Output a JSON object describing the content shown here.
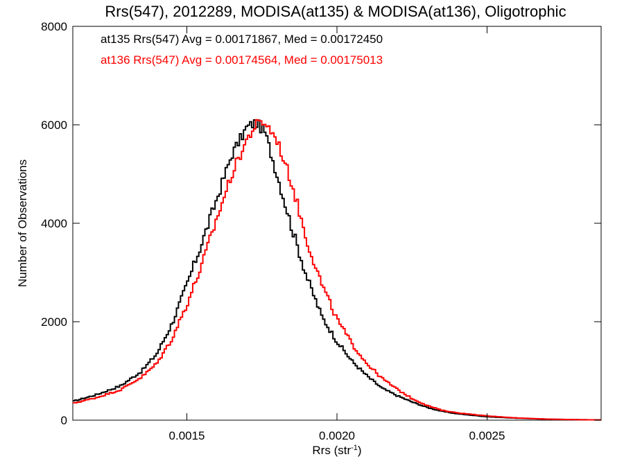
{
  "chart_data": {
    "type": "line",
    "title": "Rrs(547), 2012289, MODISA(at135) & MODISA(at136), Oligotrophic",
    "xlabel": {
      "base": "Rrs (str",
      "sup": "-1",
      "close": ")"
    },
    "ylabel": "Number of Observations",
    "xlim": [
      0.00112,
      0.00288
    ],
    "ylim": [
      0,
      8000
    ],
    "x_ticks": [
      {
        "value": 0.0015,
        "label": "0.0015"
      },
      {
        "value": 0.002,
        "label": "0.0020"
      },
      {
        "value": 0.0025,
        "label": "0.0025"
      }
    ],
    "y_ticks": [
      {
        "value": 0,
        "label": "0"
      },
      {
        "value": 2000,
        "label": "2000"
      },
      {
        "value": 4000,
        "label": "4000"
      },
      {
        "value": 6000,
        "label": "6000"
      },
      {
        "value": 8000,
        "label": "8000"
      }
    ],
    "grid": false,
    "style": "histogram-step",
    "series": [
      {
        "color": "#000000",
        "annotation": "at135 Rrs(547) Avg = 0.00171867, Med = 0.00172450",
        "points": [
          [
            0.00112,
            380
          ],
          [
            0.0012,
            520
          ],
          [
            0.00128,
            700
          ],
          [
            0.00135,
            1000
          ],
          [
            0.0014,
            1350
          ],
          [
            0.00145,
            1950
          ],
          [
            0.0015,
            2750
          ],
          [
            0.00155,
            3600
          ],
          [
            0.0016,
            4500
          ],
          [
            0.00165,
            5400
          ],
          [
            0.0017,
            5950
          ],
          [
            0.00173,
            6050
          ],
          [
            0.00176,
            5850
          ],
          [
            0.0018,
            5000
          ],
          [
            0.00185,
            3900
          ],
          [
            0.0019,
            2900
          ],
          [
            0.00195,
            2100
          ],
          [
            0.002,
            1600
          ],
          [
            0.00205,
            1200
          ],
          [
            0.0021,
            900
          ],
          [
            0.00215,
            650
          ],
          [
            0.0022,
            500
          ],
          [
            0.00225,
            370
          ],
          [
            0.0023,
            260
          ],
          [
            0.00235,
            180
          ],
          [
            0.0024,
            130
          ],
          [
            0.0025,
            70
          ],
          [
            0.0026,
            40
          ],
          [
            0.0027,
            20
          ],
          [
            0.0028,
            10
          ],
          [
            0.00288,
            5
          ]
        ]
      },
      {
        "color": "#ff0000",
        "annotation": "at136 Rrs(547) Avg = 0.00174564, Med = 0.00175013",
        "points": [
          [
            0.00112,
            340
          ],
          [
            0.0012,
            460
          ],
          [
            0.00128,
            620
          ],
          [
            0.00135,
            880
          ],
          [
            0.0014,
            1150
          ],
          [
            0.00145,
            1650
          ],
          [
            0.0015,
            2350
          ],
          [
            0.00155,
            3150
          ],
          [
            0.0016,
            4100
          ],
          [
            0.00165,
            5000
          ],
          [
            0.0017,
            5700
          ],
          [
            0.00173,
            6000
          ],
          [
            0.00176,
            6050
          ],
          [
            0.0018,
            5700
          ],
          [
            0.00185,
            4800
          ],
          [
            0.0019,
            3650
          ],
          [
            0.00195,
            2750
          ],
          [
            0.002,
            2050
          ],
          [
            0.00205,
            1550
          ],
          [
            0.0021,
            1150
          ],
          [
            0.00215,
            850
          ],
          [
            0.0022,
            630
          ],
          [
            0.00225,
            440
          ],
          [
            0.0023,
            300
          ],
          [
            0.00235,
            200
          ],
          [
            0.0024,
            150
          ],
          [
            0.0025,
            85
          ],
          [
            0.0026,
            45
          ],
          [
            0.0027,
            22
          ],
          [
            0.0028,
            10
          ],
          [
            0.00288,
            5
          ]
        ]
      }
    ]
  }
}
